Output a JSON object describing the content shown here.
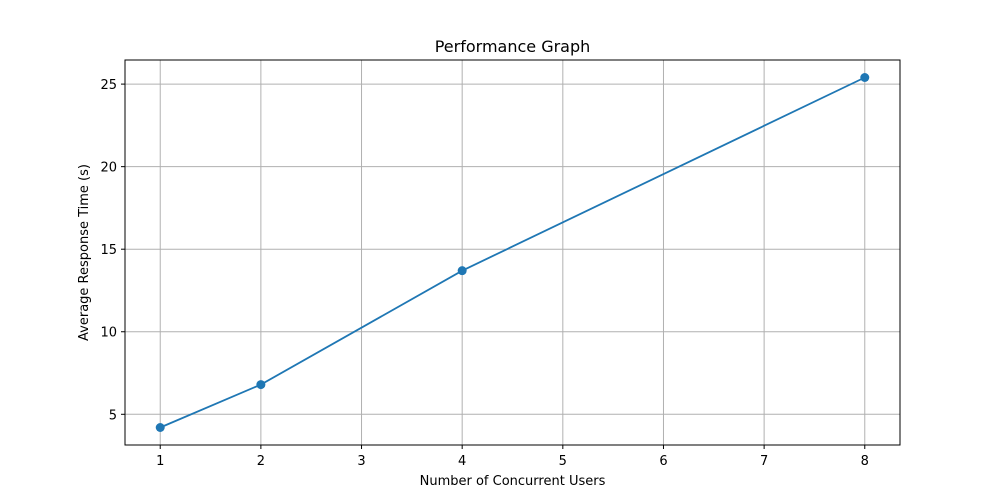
{
  "chart_data": {
    "type": "line",
    "title": "Performance Graph",
    "xlabel": "Number of Concurrent Users",
    "ylabel": "Average Response Time (s)",
    "x": [
      1,
      2,
      4,
      8
    ],
    "series": [
      {
        "values": [
          4.2,
          6.8,
          13.7,
          25.4
        ]
      }
    ],
    "xlim": [
      0.65,
      8.35
    ],
    "ylim": [
      3.14,
      26.46
    ],
    "xticks": [
      1,
      2,
      3,
      4,
      5,
      6,
      7,
      8
    ],
    "yticks": [
      5,
      10,
      15,
      20,
      25
    ],
    "grid": true,
    "markers": true,
    "color": "#1f77b4"
  }
}
